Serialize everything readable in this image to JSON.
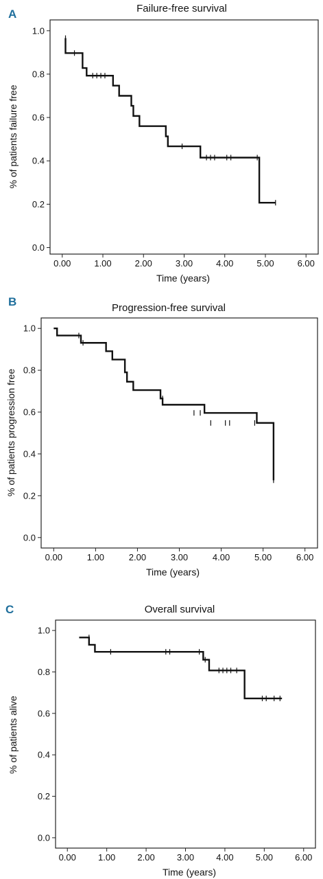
{
  "chart_data": [
    {
      "type": "line",
      "panel_letter": "A",
      "title": "Failure-free survival",
      "xlabel": "Time (years)",
      "ylabel": "% of patients failure free",
      "xlim": [
        -0.3,
        6.3
      ],
      "ylim": [
        -0.03,
        1.05
      ],
      "x_ticks": [
        "0.00",
        "1.00",
        "2.00",
        "3.00",
        "4.00",
        "5.00",
        "6.00"
      ],
      "y_ticks": [
        "0.0",
        "0.2",
        "0.4",
        "0.6",
        "0.8",
        "1.0"
      ],
      "grid": false,
      "legend": "none",
      "series": [
        {
          "step_x": [
            0.08,
            0.08,
            0.5,
            0.6,
            0.7,
            1.25,
            1.4,
            1.7,
            1.75,
            1.9,
            2.55,
            2.6,
            3.4,
            4.85,
            5.25
          ],
          "step_y": [
            0.966,
            0.897,
            0.828,
            0.793,
            0.793,
            0.747,
            0.7,
            0.654,
            0.607,
            0.56,
            0.513,
            0.467,
            0.415,
            0.207,
            0.207
          ],
          "censor_x": [
            0.08,
            0.3,
            0.75,
            0.85,
            0.95,
            1.05,
            2.95,
            3.55,
            3.65,
            3.75,
            4.05,
            4.15,
            4.8,
            5.25
          ],
          "censor_y": [
            0.966,
            0.897,
            0.793,
            0.793,
            0.793,
            0.793,
            0.467,
            0.415,
            0.415,
            0.415,
            0.415,
            0.415,
            0.415,
            0.207
          ]
        }
      ]
    },
    {
      "type": "line",
      "panel_letter": "B",
      "title": "Progression-free survival",
      "xlabel": "Time (years)",
      "ylabel": "% of patients progression free",
      "xlim": [
        -0.3,
        6.3
      ],
      "ylim": [
        -0.05,
        1.05
      ],
      "x_ticks": [
        "0.00",
        "1.00",
        "2.00",
        "3.00",
        "4.00",
        "5.00",
        "6.00"
      ],
      "y_ticks": [
        "0.0",
        "0.2",
        "0.4",
        "0.6",
        "0.8",
        "1.0"
      ],
      "grid": false,
      "legend": "none",
      "series": [
        {
          "step_x": [
            0.0,
            0.08,
            0.65,
            1.25,
            1.4,
            1.7,
            1.75,
            1.9,
            2.55,
            2.6,
            3.6,
            4.85,
            5.25
          ],
          "step_y": [
            1.0,
            0.966,
            0.931,
            0.891,
            0.851,
            0.79,
            0.745,
            0.705,
            0.665,
            0.635,
            0.596,
            0.548,
            0.274
          ],
          "censor_x": [
            0.08,
            0.6,
            0.7,
            2.6,
            3.35,
            3.5,
            3.75,
            4.1,
            4.2,
            4.8,
            5.25
          ],
          "censor_y": [
            0.98,
            0.966,
            0.931,
            0.665,
            0.596,
            0.596,
            0.548,
            0.548,
            0.548,
            0.548,
            0.274
          ]
        }
      ]
    },
    {
      "type": "line",
      "panel_letter": "C",
      "title": "Overall survival",
      "xlabel": "Time (years)",
      "ylabel": "% of patients alive",
      "xlim": [
        -0.3,
        6.3
      ],
      "ylim": [
        -0.05,
        1.05
      ],
      "x_ticks": [
        "0.00",
        "1.00",
        "2.00",
        "3.00",
        "4.00",
        "5.00",
        "6.00"
      ],
      "y_ticks": [
        "0.0",
        "0.2",
        "0.4",
        "0.6",
        "0.8",
        "1.0"
      ],
      "grid": false,
      "legend": "none",
      "series": [
        {
          "step_x": [
            0.3,
            0.55,
            0.7,
            3.45,
            3.6,
            4.5,
            5.45
          ],
          "step_y": [
            0.966,
            0.931,
            0.897,
            0.859,
            0.807,
            0.672,
            0.672
          ],
          "censor_x": [
            0.55,
            1.1,
            2.5,
            2.6,
            3.35,
            3.5,
            3.85,
            3.95,
            4.05,
            4.15,
            4.3,
            4.95,
            5.05,
            5.25,
            5.4
          ],
          "censor_y": [
            0.966,
            0.897,
            0.897,
            0.897,
            0.897,
            0.859,
            0.807,
            0.807,
            0.807,
            0.807,
            0.807,
            0.672,
            0.672,
            0.672,
            0.672
          ]
        }
      ]
    }
  ]
}
